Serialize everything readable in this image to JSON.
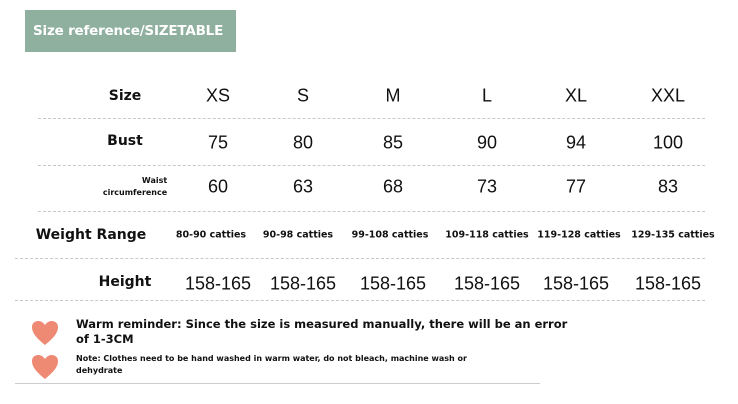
{
  "title": "Size reference/SIZETABLE",
  "table": {
    "columns": [
      "XS",
      "S",
      "M",
      "L",
      "XL",
      "XXL"
    ],
    "rows": [
      {
        "label": "Size",
        "values": [
          "XS",
          "S",
          "M",
          "L",
          "XL",
          "XXL"
        ]
      },
      {
        "label": "Bust",
        "values": [
          "75",
          "80",
          "85",
          "90",
          "94",
          "100"
        ]
      },
      {
        "label_line1": "Waist",
        "label_line2": "circumference",
        "values": [
          "60",
          "63",
          "68",
          "73",
          "77",
          "83"
        ]
      },
      {
        "label": "Weight Range",
        "values": [
          "80-90 catties",
          "90-98 catties",
          "99-108 catties",
          "109-118 catties",
          "119-128 catties",
          "129-135 catties"
        ]
      },
      {
        "label": "Height",
        "values": [
          "158-165",
          "158-165",
          "158-165",
          "158-165",
          "158-165",
          "158-165"
        ]
      }
    ]
  },
  "notes": {
    "reminder_line1": "Warm reminder: Since the size is measured manually, there will be an error",
    "reminder_line2": "of 1-3CM",
    "care_line1": "Note: Clothes need to be hand washed in warm water, do not bleach, machine wash or",
    "care_line2": "dehydrate",
    "heart_icon": "heart-icon"
  },
  "colors": {
    "banner": "#8fb09f",
    "heart": "#ee8a73"
  }
}
